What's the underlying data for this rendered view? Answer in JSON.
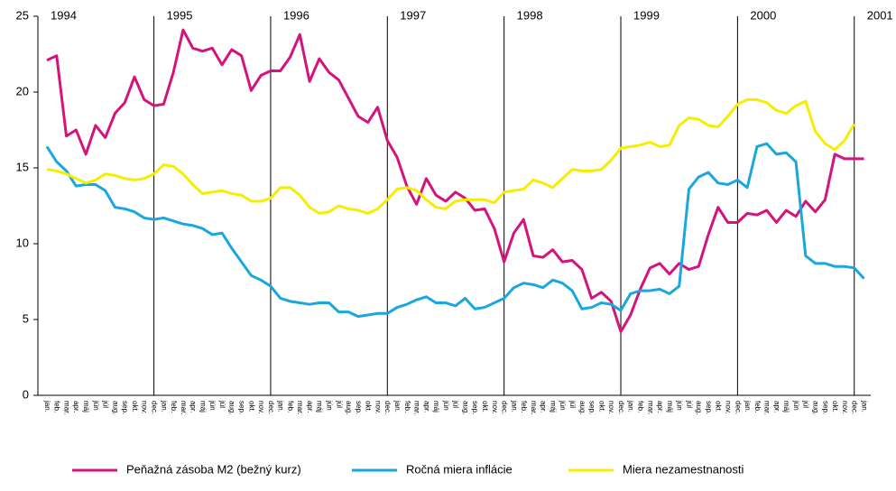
{
  "chart_data": {
    "type": "line",
    "years": [
      "1994",
      "1995",
      "1996",
      "1997",
      "1998",
      "1999",
      "2000",
      "2001"
    ],
    "categories": [
      "jan.",
      "feb.",
      "mar.",
      "apr.",
      "máj",
      "jún",
      "júl",
      "aug.",
      "sep.",
      "okt.",
      "nov.",
      "dec.",
      "jan.",
      "feb.",
      "mar.",
      "apr.",
      "máj",
      "jún",
      "júl",
      "aug.",
      "sep.",
      "okt.",
      "nov.",
      "dec.",
      "jan.",
      "feb.",
      "mar.",
      "apr.",
      "máj",
      "jún",
      "júl",
      "aug.",
      "sep.",
      "okt.",
      "nov.",
      "dec.",
      "jan.",
      "feb.",
      "mar.",
      "apr.",
      "máj",
      "jún",
      "júl",
      "aug.",
      "sep.",
      "okt.",
      "nov.",
      "dec.",
      "jan.",
      "feb.",
      "mar.",
      "apr.",
      "máj",
      "jún",
      "júl",
      "aug.",
      "sep.",
      "okt.",
      "nov.",
      "dec.",
      "jan.",
      "feb.",
      "mar.",
      "apr.",
      "máj",
      "jún",
      "júl",
      "aug.",
      "sep.",
      "okt.",
      "nov.",
      "dec.",
      "jan.",
      "feb.",
      "mar.",
      "apr.",
      "máj",
      "jún",
      "júl",
      "aug.",
      "sep.",
      "okt.",
      "nov.",
      "dec.",
      "jan."
    ],
    "series": [
      {
        "name": "Peňažná zásoba M2 (bežný kurz)",
        "color": "#d4147c",
        "values": [
          22.1,
          22.4,
          17.1,
          17.5,
          15.9,
          17.8,
          17.0,
          18.6,
          19.3,
          21.0,
          19.5,
          19.1,
          19.2,
          21.3,
          24.1,
          22.9,
          22.7,
          22.9,
          21.8,
          22.8,
          22.4,
          20.1,
          21.1,
          21.4,
          21.4,
          22.3,
          23.8,
          20.7,
          22.2,
          21.3,
          20.8,
          19.6,
          18.4,
          18.0,
          19.0,
          16.8,
          15.7,
          13.8,
          12.6,
          14.3,
          13.2,
          12.8,
          13.4,
          13.0,
          12.2,
          12.3,
          11.0,
          8.8,
          10.7,
          11.6,
          9.2,
          9.1,
          9.6,
          8.8,
          8.9,
          8.3,
          6.4,
          6.8,
          6.2,
          4.2,
          5.3,
          7.0,
          8.4,
          8.7,
          8.0,
          8.7,
          8.3,
          8.5,
          10.6,
          12.4,
          11.4,
          11.4,
          12.0,
          11.9,
          12.2,
          11.4,
          12.2,
          11.8,
          12.8,
          12.1,
          12.9,
          15.9,
          15.6,
          15.6,
          15.6
        ]
      },
      {
        "name": "Ročná miera inflácie",
        "color": "#1aa7e0",
        "values": [
          16.4,
          15.4,
          14.8,
          13.8,
          13.9,
          13.9,
          13.5,
          12.4,
          12.3,
          12.1,
          11.7,
          11.6,
          11.7,
          11.5,
          11.3,
          11.2,
          11.0,
          10.6,
          10.7,
          9.7,
          8.8,
          7.9,
          7.6,
          7.2,
          6.4,
          6.2,
          6.1,
          6.0,
          6.1,
          6.1,
          5.5,
          5.5,
          5.2,
          5.3,
          5.4,
          5.4,
          5.8,
          6.0,
          6.3,
          6.5,
          6.1,
          6.1,
          5.9,
          6.4,
          5.7,
          5.8,
          6.1,
          6.4,
          7.1,
          7.4,
          7.3,
          7.1,
          7.6,
          7.4,
          6.9,
          5.7,
          5.8,
          6.1,
          6.0,
          5.6,
          6.7,
          6.9,
          6.9,
          7.0,
          6.7,
          7.2,
          13.6,
          14.4,
          14.7,
          14.0,
          13.9,
          14.2,
          13.7,
          16.4,
          16.6,
          15.9,
          16.0,
          15.4,
          9.2,
          8.7,
          8.7,
          8.5,
          8.5,
          8.4,
          7.7
        ]
      },
      {
        "name": "Miera nezamestnanosti",
        "color": "#f5ee00",
        "values": [
          14.9,
          14.8,
          14.6,
          14.3,
          14.0,
          14.2,
          14.6,
          14.5,
          14.3,
          14.2,
          14.3,
          14.6,
          15.2,
          15.1,
          14.6,
          13.9,
          13.3,
          13.4,
          13.5,
          13.3,
          13.2,
          12.8,
          12.8,
          13.0,
          13.7,
          13.7,
          13.2,
          12.4,
          12.0,
          12.1,
          12.5,
          12.3,
          12.2,
          12.0,
          12.3,
          12.9,
          13.6,
          13.7,
          13.5,
          12.9,
          12.4,
          12.3,
          12.8,
          12.9,
          12.9,
          12.9,
          12.7,
          13.4,
          13.5,
          13.6,
          14.2,
          14.0,
          13.7,
          14.3,
          14.9,
          14.8,
          14.8,
          14.9,
          15.5,
          16.3,
          16.4,
          16.5,
          16.7,
          16.4,
          16.5,
          17.8,
          18.3,
          18.2,
          17.8,
          17.7,
          18.4,
          19.2,
          19.5,
          19.5,
          19.3,
          18.8,
          18.6,
          19.1,
          19.4,
          17.4,
          16.6,
          16.2,
          16.8,
          17.9,
          null
        ]
      }
    ],
    "ylim": [
      0,
      25
    ],
    "yticks": [
      0,
      5,
      10,
      15,
      20,
      25
    ],
    "grid": false
  }
}
